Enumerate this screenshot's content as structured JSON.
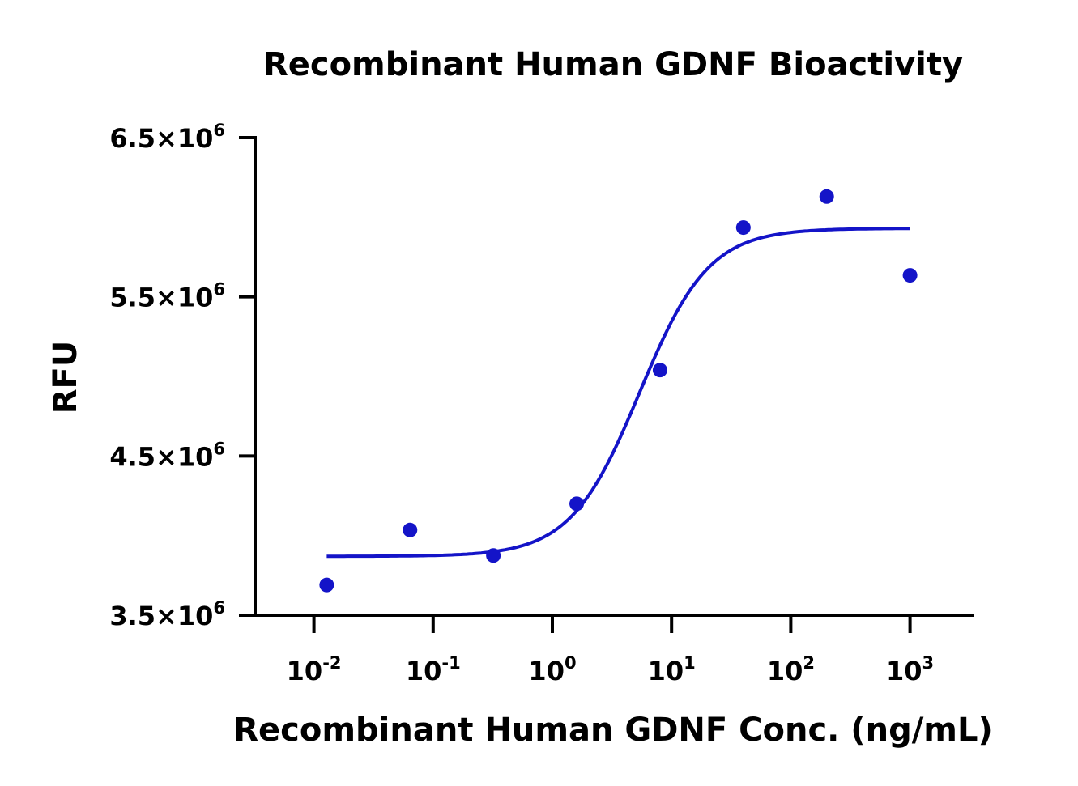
{
  "chart_data": {
    "type": "scatter",
    "title": "Recombinant Human GDNF Bioactivity",
    "xlabel": "Recombinant Human GDNF Conc. (ng/mL)",
    "ylabel": "RFU",
    "x_scale": "log",
    "xlim": [
      0.006,
      3000
    ],
    "ylim": [
      3500000,
      6500000
    ],
    "x_ticks": [
      {
        "value": 0.01,
        "base": "10",
        "exp": "-2"
      },
      {
        "value": 0.1,
        "base": "10",
        "exp": "-1"
      },
      {
        "value": 1,
        "base": "10",
        "exp": "0"
      },
      {
        "value": 10,
        "base": "10",
        "exp": "1"
      },
      {
        "value": 100,
        "base": "10",
        "exp": "2"
      },
      {
        "value": 1000,
        "base": "10",
        "exp": "3"
      }
    ],
    "y_ticks": [
      {
        "value": 3500000,
        "mant": "3.5×10",
        "exp": "6"
      },
      {
        "value": 4500000,
        "mant": "4.5×10",
        "exp": "6"
      },
      {
        "value": 5500000,
        "mant": "5.5×10",
        "exp": "6"
      },
      {
        "value": 6500000,
        "mant": "6.5×10",
        "exp": "6"
      }
    ],
    "grid": false,
    "color": "#1414c8",
    "points": {
      "x": [
        0.0128,
        0.064,
        0.32,
        1.6,
        8,
        40,
        200,
        1000
      ],
      "y": [
        3690000,
        4035000,
        3875000,
        4200000,
        5040000,
        5935000,
        6130000,
        5635000
      ]
    },
    "fit": {
      "model": "4PL",
      "bottom": 3870000,
      "top": 5930000,
      "ec50": 5.4,
      "hill": 1.5,
      "x_range": [
        0.0128,
        1000
      ]
    }
  }
}
